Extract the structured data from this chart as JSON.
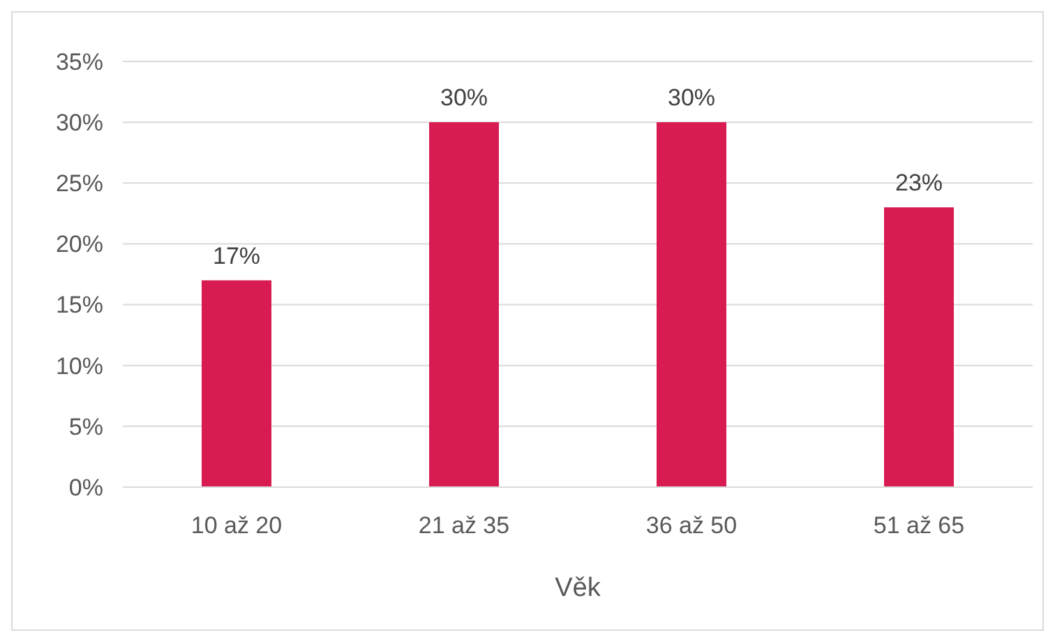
{
  "chart_data": {
    "type": "bar",
    "xlabel": "Věk",
    "categories": [
      "10 až 20",
      "21 až 35",
      "36 až 50",
      "51 až 65"
    ],
    "values": [
      17,
      30,
      30,
      23
    ],
    "value_labels": [
      "17%",
      "30%",
      "30%",
      "23%"
    ],
    "color": "#d81b50",
    "ylim": [
      0,
      35
    ],
    "yticks": [
      {
        "value": 0,
        "label": "0%"
      },
      {
        "value": 5,
        "label": "5%"
      },
      {
        "value": 10,
        "label": "10%"
      },
      {
        "value": 15,
        "label": "15%"
      },
      {
        "value": 20,
        "label": "20%"
      },
      {
        "value": 25,
        "label": "25%"
      },
      {
        "value": 30,
        "label": "30%"
      },
      {
        "value": 35,
        "label": "35%"
      }
    ],
    "grid": "y"
  }
}
